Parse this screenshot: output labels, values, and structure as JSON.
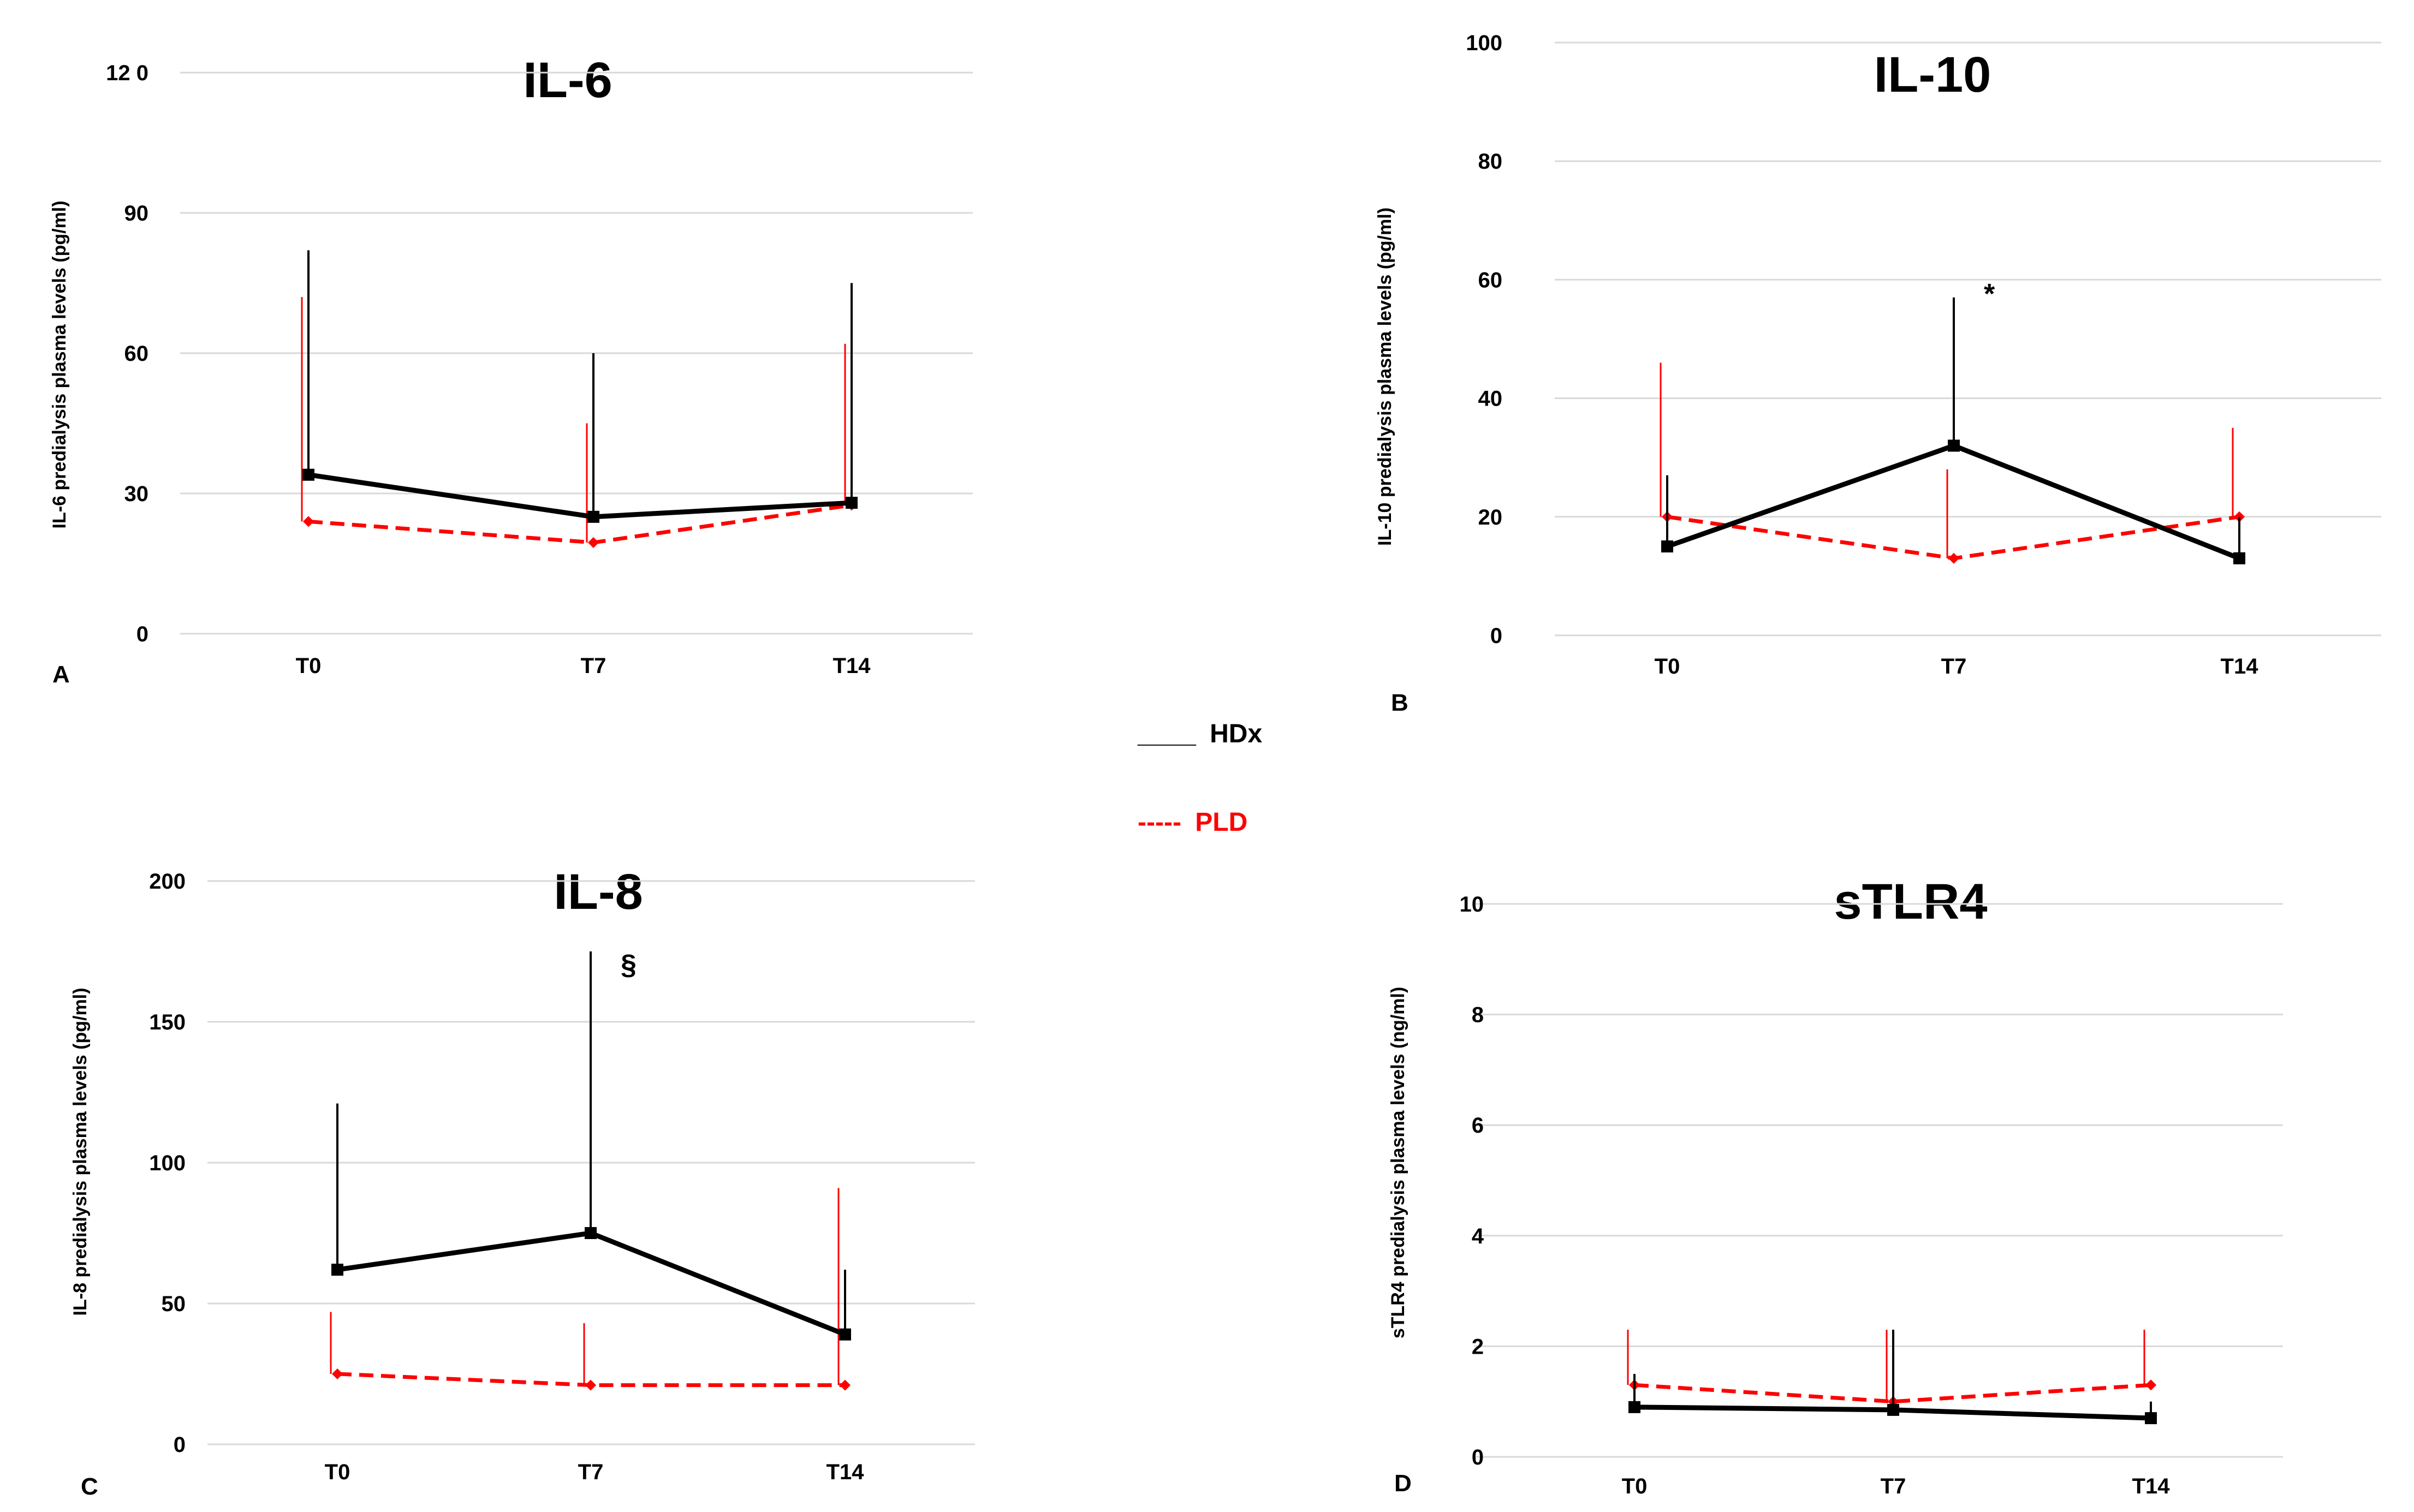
{
  "legend": {
    "items": [
      {
        "line_text": "____",
        "label": "HDx",
        "color": "#000000"
      },
      {
        "line_text": "-----",
        "label": "PLD",
        "color": "#ff0000"
      }
    ]
  },
  "colors": {
    "hdx": "#000000",
    "pld": "#ff0000",
    "grid": "#d9d9d9"
  },
  "chart_data": [
    {
      "type": "line",
      "panel": "A",
      "title": "IL-6",
      "ylabel": "IL-6 predialysis plasma levels (pg/ml)",
      "xlabel": "",
      "categories": [
        "T0",
        "T7",
        "T14"
      ],
      "ylim": [
        0,
        120
      ],
      "yticks": [
        0,
        30,
        60,
        90,
        120
      ],
      "ytick_labels": [
        "0",
        "30",
        "60",
        "90",
        "12 0"
      ],
      "series": [
        {
          "name": "HDx",
          "values": [
            34,
            25,
            28
          ],
          "error_upper": [
            82,
            60,
            75
          ]
        },
        {
          "name": "PLD",
          "values": [
            24,
            19.5,
            27.5
          ],
          "error_upper": [
            72,
            45,
            62
          ]
        }
      ],
      "annotations": []
    },
    {
      "type": "line",
      "panel": "B",
      "title": "IL-10",
      "ylabel": "IL-10 predialysis plasma levels (pg/ml)",
      "xlabel": "",
      "categories": [
        "T0",
        "T7",
        "T14"
      ],
      "ylim": [
        0,
        100
      ],
      "yticks": [
        0,
        20,
        40,
        60,
        80,
        100
      ],
      "ytick_labels": [
        "0",
        "20",
        "40",
        "60",
        "80",
        "100"
      ],
      "series": [
        {
          "name": "HDx",
          "values": [
            15,
            32,
            13
          ],
          "error_upper": [
            27,
            57,
            20
          ]
        },
        {
          "name": "PLD",
          "values": [
            20,
            13,
            20
          ],
          "error_upper": [
            46,
            28,
            35
          ]
        }
      ],
      "annotations": [
        {
          "text": "*",
          "category": "T7",
          "y": 56
        }
      ]
    },
    {
      "type": "line",
      "panel": "C",
      "title": "IL-8",
      "ylabel": "IL-8 predialysis plasma levels (pg/ml)",
      "xlabel": "",
      "categories": [
        "T0",
        "T7",
        "T14"
      ],
      "ylim": [
        0,
        200
      ],
      "yticks": [
        0,
        50,
        100,
        150,
        200
      ],
      "ytick_labels": [
        "0",
        "50",
        "100",
        "150",
        "200"
      ],
      "series": [
        {
          "name": "HDx",
          "values": [
            62,
            75,
            39
          ],
          "error_upper": [
            121,
            175,
            62
          ]
        },
        {
          "name": "PLD",
          "values": [
            25,
            21,
            21
          ],
          "error_upper": [
            47,
            43,
            91
          ]
        }
      ],
      "annotations": [
        {
          "text": "§",
          "category": "T7",
          "y": 167
        }
      ]
    },
    {
      "type": "line",
      "panel": "D",
      "title": "sTLR4",
      "ylabel": "sTLR4 predialysis plasma levels (ng/ml)",
      "xlabel": "",
      "categories": [
        "T0",
        "T7",
        "T14"
      ],
      "ylim": [
        0,
        10
      ],
      "yticks": [
        0,
        2,
        4,
        6,
        8,
        10
      ],
      "ytick_labels": [
        "0",
        "2",
        "4",
        "6",
        "8",
        "10"
      ],
      "series": [
        {
          "name": "HDx",
          "values": [
            0.9,
            0.85,
            0.7
          ],
          "error_upper": [
            1.5,
            2.3,
            1.0
          ]
        },
        {
          "name": "PLD",
          "values": [
            1.3,
            1.0,
            1.3
          ],
          "error_upper": [
            2.3,
            2.3,
            2.3
          ]
        }
      ],
      "annotations": []
    }
  ]
}
